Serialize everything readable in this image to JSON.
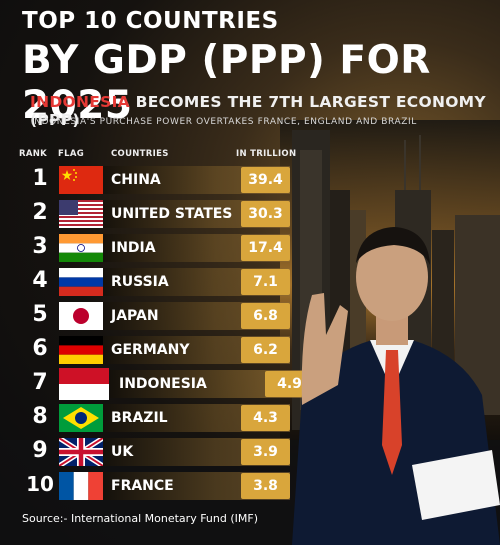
{
  "title_line1": "TOP 10 COUNTRIES",
  "title_line2": "BY GDP (PPP) FOR 2025",
  "subtitle_highlight": "INDONESIA",
  "subtitle_rest": " BECOMES THE 7TH LARGEST ECONOMY (PPP)",
  "subsubtitle": "INDONESIA'S PURCHASE POWER OVERTAKES FRANCE, ENGLAND AND BRAZIL",
  "headers": {
    "rank": "RANK",
    "flag": "FLAG",
    "countries": "COUNTRIES",
    "unit": "IN TRILLION"
  },
  "source": "Source:- International Monetary Fund (IMF)",
  "colors": {
    "value_box": "#d9a63c",
    "highlight_red": "#e53935"
  },
  "chart_data": {
    "type": "table",
    "title": "TOP 10 COUNTRIES BY GDP (PPP) FOR 2025",
    "columns": [
      "RANK",
      "FLAG",
      "COUNTRIES",
      "IN TRILLION"
    ],
    "rows": [
      {
        "rank": "1",
        "country": "CHINA",
        "value": "39.4",
        "flag": "china-flag"
      },
      {
        "rank": "2",
        "country": "UNITED STATES",
        "value": "30.3",
        "flag": "usa-flag"
      },
      {
        "rank": "3",
        "country": "INDIA",
        "value": "17.4",
        "flag": "india-flag"
      },
      {
        "rank": "4",
        "country": "RUSSIA",
        "value": "7.1",
        "flag": "russia-flag"
      },
      {
        "rank": "5",
        "country": "JAPAN",
        "value": "6.8",
        "flag": "japan-flag"
      },
      {
        "rank": "6",
        "country": "GERMANY",
        "value": "6.2",
        "flag": "germany-flag"
      },
      {
        "rank": "7",
        "country": "INDONESIA",
        "value": "4.9",
        "flag": "indonesia-flag",
        "highlighted": true
      },
      {
        "rank": "8",
        "country": "BRAZIL",
        "value": "4.3",
        "flag": "brazil-flag"
      },
      {
        "rank": "9",
        "country": "UK",
        "value": "3.9",
        "flag": "uk-flag"
      },
      {
        "rank": "10",
        "country": "FRANCE",
        "value": "3.8",
        "flag": "france-flag"
      }
    ]
  }
}
